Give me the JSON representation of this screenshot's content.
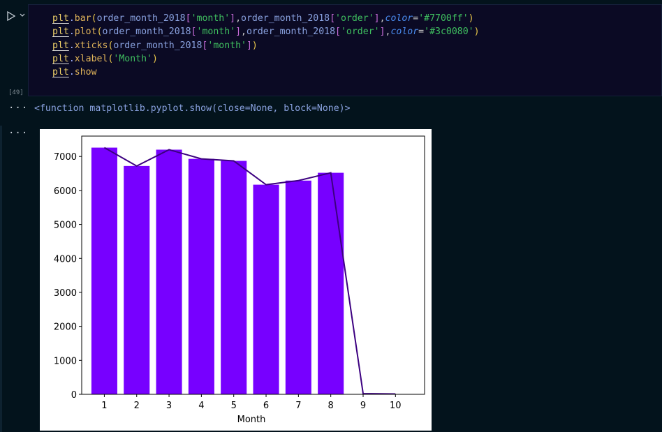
{
  "cell": {
    "execution_count": "[49]",
    "code_lines": [
      [
        [
          "plt",
          "plt"
        ],
        [
          ".",
          "dot"
        ],
        [
          "bar",
          "fn"
        ],
        [
          "(",
          "p1"
        ],
        [
          "order_month_2018",
          "var"
        ],
        [
          "[",
          "p2"
        ],
        [
          "'month'",
          "str"
        ],
        [
          "]",
          "p2"
        ],
        [
          ",",
          "comma"
        ],
        [
          "order_month_2018",
          "var"
        ],
        [
          "[",
          "p2"
        ],
        [
          "'order'",
          "str"
        ],
        [
          "]",
          "p2"
        ],
        [
          ",",
          "comma"
        ],
        [
          "color",
          "kw"
        ],
        [
          "=",
          "eq"
        ],
        [
          "'#7700ff'",
          "str"
        ],
        [
          ")",
          "p1"
        ]
      ],
      [
        [
          "plt",
          "plt"
        ],
        [
          ".",
          "dot"
        ],
        [
          "plot",
          "fn"
        ],
        [
          "(",
          "p1"
        ],
        [
          "order_month_2018",
          "var"
        ],
        [
          "[",
          "p2"
        ],
        [
          "'month'",
          "str"
        ],
        [
          "]",
          "p2"
        ],
        [
          ",",
          "comma"
        ],
        [
          "order_month_2018",
          "var"
        ],
        [
          "[",
          "p2"
        ],
        [
          "'order'",
          "str"
        ],
        [
          "]",
          "p2"
        ],
        [
          ",",
          "comma"
        ],
        [
          "color",
          "kw"
        ],
        [
          "=",
          "eq"
        ],
        [
          "'#3c0080'",
          "str"
        ],
        [
          ")",
          "p1"
        ]
      ],
      [
        [
          "plt",
          "plt"
        ],
        [
          ".",
          "dot"
        ],
        [
          "xticks",
          "fn"
        ],
        [
          "(",
          "p1"
        ],
        [
          "order_month_2018",
          "var"
        ],
        [
          "[",
          "p2"
        ],
        [
          "'month'",
          "str"
        ],
        [
          "]",
          "p2"
        ],
        [
          ")",
          "p1"
        ]
      ],
      [
        [
          "plt",
          "plt"
        ],
        [
          ".",
          "dot"
        ],
        [
          "xlabel",
          "fn"
        ],
        [
          "(",
          "p1"
        ],
        [
          "'Month'",
          "str"
        ],
        [
          ")",
          "p1"
        ]
      ],
      [
        [
          "plt",
          "plt"
        ],
        [
          ".",
          "dot"
        ],
        [
          "show",
          "fn"
        ]
      ]
    ]
  },
  "output": {
    "gutter_1": "···",
    "gutter_2": "···",
    "text": "<function matplotlib.pyplot.show(close=None, block=None)>"
  },
  "chart_data": {
    "type": "bar",
    "categories": [
      "1",
      "2",
      "3",
      "4",
      "5",
      "6",
      "7",
      "8",
      "9",
      "10"
    ],
    "values": [
      7260,
      6720,
      7200,
      6930,
      6870,
      6170,
      6290,
      6520,
      0,
      0
    ],
    "line_values": [
      7260,
      6720,
      7200,
      6930,
      6870,
      6170,
      6290,
      6520,
      20,
      10
    ],
    "bar_color": "#7700ff",
    "line_color": "#3c0080",
    "xlabel": "Month",
    "ylabel": "",
    "title": "",
    "ylim": [
      0,
      7600
    ],
    "yticks": [
      0,
      1000,
      2000,
      3000,
      4000,
      5000,
      6000,
      7000
    ],
    "ytick_labels": [
      "0",
      "1000",
      "2000",
      "3000",
      "4000",
      "5000",
      "6000",
      "7000"
    ]
  }
}
